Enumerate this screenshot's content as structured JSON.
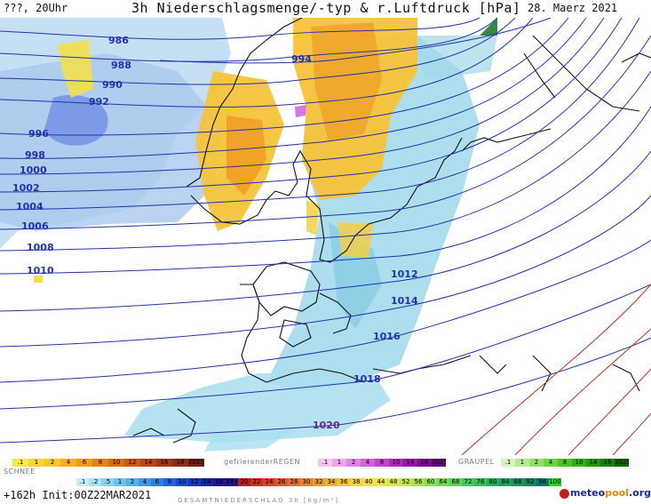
{
  "header": {
    "valid_time": "???, 20Uhr",
    "title": "3h Niederschlagsmenge/-typ & r.Luftdruck [hPa]",
    "date": "28. Maerz 2021"
  },
  "isobars": [
    {
      "label": "986"
    },
    {
      "label": "988"
    },
    {
      "label": "990"
    },
    {
      "label": "992"
    },
    {
      "label": "994"
    },
    {
      "label": "996"
    },
    {
      "label": "998"
    },
    {
      "label": "1000"
    },
    {
      "label": "1002"
    },
    {
      "label": "1004"
    },
    {
      "label": "1006"
    },
    {
      "label": "1008"
    },
    {
      "label": "1010"
    },
    {
      "label": "1012"
    },
    {
      "label": "1014"
    },
    {
      "label": "1016"
    },
    {
      "label": "1018"
    },
    {
      "label": "1020"
    }
  ],
  "legend": {
    "rain_scale": [
      ".1",
      "1",
      "2",
      "4",
      "6",
      "8",
      "10",
      "12",
      "14",
      "16",
      "18",
      "2025+"
    ],
    "freezing_rain_label": "gefrierenderREGEN",
    "freezing_rain_scale": [
      ".1",
      "1",
      "2",
      "4",
      "8",
      "10",
      "14",
      "16",
      "2025+"
    ],
    "graupel_label": "GRAUPEL",
    "graupel_scale": [
      ".1",
      "1",
      "2",
      "4",
      "8",
      "10",
      "14",
      "16",
      "2025+"
    ],
    "snow_label": "SCHNEE",
    "snow_scale": [
      ".1",
      ".2",
      ".5",
      "1",
      "2",
      "4",
      "6",
      "8",
      "10",
      "12",
      "14",
      "16",
      "18+"
    ],
    "total_scale": [
      "20",
      "22",
      "24",
      "26",
      "28",
      "30",
      "32",
      "34",
      "36",
      "38",
      "40",
      "44",
      "48",
      "52",
      "56",
      "60",
      "64",
      "68",
      "72",
      "76",
      "80",
      "84",
      "88",
      "92",
      "96",
      "100"
    ],
    "total_caption": "GESAMTNIEDERSCHLAG 3h [kg/m²]"
  },
  "footer": {
    "run_info": "+162h  Init:00Z22MAR2021",
    "brand_a": "meteo",
    "brand_b": "pool",
    "brand_c": ".org"
  },
  "colors": {
    "rain_scale": [
      "#f2ea4d",
      "#f5d63a",
      "#f7c62e",
      "#f5b020",
      "#f09a16",
      "#e58412",
      "#d86e12",
      "#c85a14",
      "#b44816",
      "#9e3a18",
      "#8a2e1a",
      "#6e2418"
    ],
    "freezing_scale": [
      "#f4c9f0",
      "#eaa8e6",
      "#df86dc",
      "#d064d2",
      "#c044c8",
      "#ad2ab8",
      "#9418a2",
      "#7a0e8c",
      "#620874"
    ],
    "graupel_scale": [
      "#d6f5c0",
      "#b6ec93",
      "#93e06a",
      "#6fd246",
      "#4fc22a",
      "#36ae18",
      "#239810",
      "#16800a",
      "#0e6806"
    ],
    "snow_scale": [
      "#c7ecf6",
      "#a9e0f2",
      "#8ad2ee",
      "#6cc2ea",
      "#54b0e6",
      "#3f98e0",
      "#2f80d8",
      "#2366d0",
      "#1c4ec4",
      "#1838b6",
      "#1a22a6",
      "#241696",
      "#2a1088"
    ],
    "total_scale": [
      "#b22222",
      "#c23226",
      "#d0442a",
      "#d85a2e",
      "#e07032",
      "#e48636",
      "#e89c3a",
      "#ecb03e",
      "#f0c442",
      "#f2d446",
      "#f2e24a",
      "#e8e84c",
      "#d4e84e",
      "#bee650",
      "#a6e252",
      "#8cde54",
      "#72d856",
      "#5ad258",
      "#44c85a",
      "#34bc5c",
      "#28ae5e",
      "#20a060",
      "#1a9262",
      "#168464",
      "#127666",
      "#2bd11e"
    ],
    "isobar_low": "#2233aa",
    "isobar_high": "#b03020"
  }
}
